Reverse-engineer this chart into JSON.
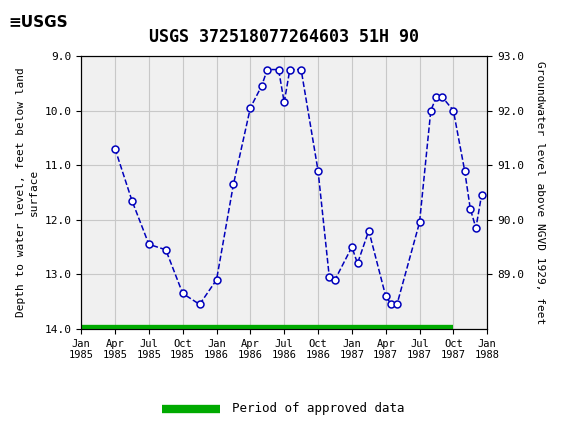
{
  "title": "USGS 372518077264603 51H 90",
  "xlabel_ticks": [
    "Jan\n1985",
    "Apr\n1985",
    "Jul\n1985",
    "Oct\n1985",
    "Jan\n1986",
    "Apr\n1986",
    "Jul\n1986",
    "Oct\n1986",
    "Jan\n1987",
    "Apr\n1987",
    "Jul\n1987",
    "Oct\n1987",
    "Jan\n1988"
  ],
  "ylabel_left": "Depth to water level, feet below land\nsurface",
  "ylabel_right": "Groundwater level above NGVD 1929, feet",
  "yticks_left": [
    9.0,
    10.0,
    11.0,
    12.0,
    13.0,
    14.0
  ],
  "yticks_right": [
    89.0,
    90.0,
    91.0,
    92.0,
    93.0
  ],
  "x_months": [
    3,
    4.5,
    6,
    7.5,
    9,
    10.5,
    12,
    13.5,
    15,
    16,
    16.5,
    17.5,
    18,
    18.5,
    19.5,
    21,
    22,
    22.5,
    24,
    24.5,
    25.5,
    27,
    27.5,
    28,
    30,
    31,
    31.5,
    32,
    33,
    34,
    34.5,
    35,
    35.5
  ],
  "y_depth": [
    10.7,
    11.65,
    12.45,
    12.55,
    13.35,
    13.55,
    13.1,
    11.35,
    9.95,
    9.55,
    9.25,
    9.25,
    9.85,
    9.25,
    9.25,
    11.1,
    13.05,
    13.1,
    12.5,
    12.8,
    12.2,
    13.4,
    13.55,
    13.55,
    12.05,
    10.0,
    9.75,
    9.75,
    10.0,
    11.1,
    11.8,
    12.15,
    11.55
  ],
  "line_color": "#0000bb",
  "marker_facecolor": "#ffffff",
  "marker_edgecolor": "#0000bb",
  "grid_color": "#c8c8c8",
  "plot_bg": "#f0f0f0",
  "header_bg": "#1a6b3c",
  "approved_color": "#00aa00",
  "title_fontsize": 12,
  "tick_fontsize": 8,
  "label_fontsize": 8,
  "legend_fontsize": 9,
  "ngvd_ref": 102.0
}
